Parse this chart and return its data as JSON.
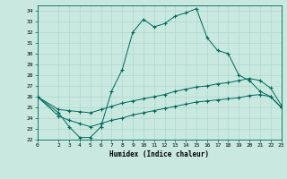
{
  "xlabel": "Humidex (Indice chaleur)",
  "background_color": "#c8e8e0",
  "grid_color": "#b0d8d0",
  "line_color": "#006858",
  "xlim": [
    0,
    23
  ],
  "ylim": [
    22,
    34.5
  ],
  "xticks": [
    0,
    2,
    3,
    4,
    5,
    6,
    7,
    8,
    9,
    10,
    11,
    12,
    13,
    14,
    15,
    16,
    17,
    18,
    19,
    20,
    21,
    22,
    23
  ],
  "yticks": [
    22,
    23,
    24,
    25,
    26,
    27,
    28,
    29,
    30,
    31,
    32,
    33,
    34
  ],
  "series1_x": [
    0,
    2,
    3,
    4,
    5,
    6,
    7,
    8,
    9,
    10,
    11,
    12,
    13,
    14,
    15,
    16,
    17,
    18,
    19,
    20,
    21,
    22,
    23
  ],
  "series1_y": [
    26.0,
    24.5,
    23.2,
    22.2,
    22.2,
    23.2,
    26.5,
    28.5,
    32.0,
    33.2,
    32.5,
    32.8,
    33.5,
    33.8,
    34.2,
    31.5,
    30.3,
    30.0,
    28.0,
    27.5,
    26.5,
    26.0,
    25.0
  ],
  "series2_x": [
    0,
    2,
    3,
    4,
    5,
    6,
    7,
    8,
    9,
    10,
    11,
    12,
    13,
    14,
    15,
    16,
    17,
    18,
    19,
    20,
    21,
    22,
    23
  ],
  "series2_y": [
    26.0,
    24.8,
    24.7,
    24.6,
    24.5,
    24.8,
    25.1,
    25.4,
    25.6,
    25.8,
    26.0,
    26.2,
    26.5,
    26.7,
    26.9,
    27.0,
    27.2,
    27.3,
    27.5,
    27.7,
    27.5,
    26.8,
    25.2
  ],
  "series3_x": [
    0,
    2,
    3,
    4,
    5,
    6,
    7,
    8,
    9,
    10,
    11,
    12,
    13,
    14,
    15,
    16,
    17,
    18,
    19,
    20,
    21,
    22,
    23
  ],
  "series3_y": [
    26.0,
    24.2,
    23.8,
    23.5,
    23.2,
    23.5,
    23.8,
    24.0,
    24.3,
    24.5,
    24.7,
    24.9,
    25.1,
    25.3,
    25.5,
    25.6,
    25.7,
    25.8,
    25.9,
    26.1,
    26.2,
    26.0,
    25.0
  ]
}
